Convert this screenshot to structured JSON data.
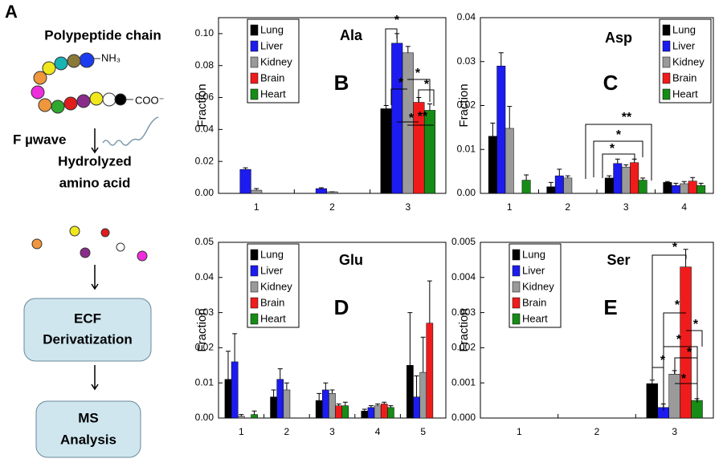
{
  "workflow": {
    "panel": "A",
    "title": "Polypeptide chain",
    "n_terminus": "NH₃",
    "c_terminus": "COO⁻",
    "step": "F µwave",
    "product": [
      "Hydrolyzed",
      "amino acid"
    ],
    "derivatization": [
      "ECF",
      "Derivatization"
    ],
    "analysis": [
      "MS",
      "Analysis"
    ]
  },
  "chart_data": [
    {
      "type": "bar",
      "title": "Ala",
      "panel": "B",
      "ylabel": "Fraction",
      "legend": "upper left",
      "categories": [
        "1",
        "2",
        "3"
      ],
      "ylim": [
        0,
        0.11
      ],
      "yticks": [
        {
          "value": 0,
          "label": "0.00"
        },
        {
          "value": 0.02,
          "label": "0.02"
        },
        {
          "value": 0.04,
          "label": "0.04"
        },
        {
          "value": 0.06,
          "label": "0.06"
        },
        {
          "value": 0.08,
          "label": "0.08"
        },
        {
          "value": 0.1,
          "label": "0.10"
        }
      ],
      "series": [
        {
          "name": "Lung",
          "color": "#000000",
          "values": [
            0,
            0,
            0.053
          ],
          "errors": [
            0,
            0,
            0.002
          ]
        },
        {
          "name": "Liver",
          "color": "#1c1cf0",
          "values": [
            0.015,
            0.003,
            0.094
          ],
          "errors": [
            0.001,
            0.0005,
            0.006
          ]
        },
        {
          "name": "Kidney",
          "color": "#9a9a9a",
          "values": [
            0.002,
            0.001,
            0.088
          ],
          "errors": [
            0.001,
            0,
            0.004
          ]
        },
        {
          "name": "Brain",
          "color": "#f01c1c",
          "values": [
            0,
            0,
            0.057
          ],
          "errors": [
            0,
            0,
            0.003
          ]
        },
        {
          "name": "Heart",
          "color": "#168c16",
          "values": [
            0,
            0,
            0.052
          ],
          "errors": [
            0,
            0,
            0.004
          ]
        }
      ],
      "annotations": [
        "*",
        "*",
        "*",
        "*",
        "*",
        "**"
      ]
    },
    {
      "type": "bar",
      "title": "Asp",
      "panel": "C",
      "ylabel": "Fraction",
      "legend": "upper right",
      "categories": [
        "1",
        "2",
        "3",
        "4"
      ],
      "ylim": [
        0,
        0.04
      ],
      "yticks": [
        {
          "value": 0,
          "label": "0.00"
        },
        {
          "value": 0.01,
          "label": "0.01"
        },
        {
          "value": 0.02,
          "label": "0.02"
        },
        {
          "value": 0.03,
          "label": "0.03"
        },
        {
          "value": 0.04,
          "label": "0.04"
        }
      ],
      "series": [
        {
          "name": "Lung",
          "color": "#000000",
          "values": [
            0.013,
            0.0015,
            0.0035,
            0.0025
          ],
          "errors": [
            0.003,
            0.001,
            0.0005,
            0.0002
          ]
        },
        {
          "name": "Liver",
          "color": "#1c1cf0",
          "values": [
            0.029,
            0.004,
            0.0068,
            0.0018
          ],
          "errors": [
            0.003,
            0.0015,
            0.001,
            0.0005
          ]
        },
        {
          "name": "Kidney",
          "color": "#9a9a9a",
          "values": [
            0.0148,
            0.0035,
            0.006,
            0.0022
          ],
          "errors": [
            0.005,
            0.0005,
            0.0005,
            0.0005
          ]
        },
        {
          "name": "Brain",
          "color": "#f01c1c",
          "values": [
            0,
            0,
            0.007,
            0.0028
          ],
          "errors": [
            0,
            0,
            0.0008,
            0.0008
          ]
        },
        {
          "name": "Heart",
          "color": "#168c16",
          "values": [
            0.003,
            0,
            0.003,
            0.0018
          ],
          "errors": [
            0.0012,
            0,
            0.0005,
            0.0005
          ]
        }
      ],
      "annotations": [
        "**",
        "*",
        "*"
      ]
    },
    {
      "type": "bar",
      "title": "Glu",
      "panel": "D",
      "ylabel": "Fraction",
      "legend": "upper left",
      "categories": [
        "1",
        "2",
        "3",
        "4",
        "5"
      ],
      "ylim": [
        0,
        0.05
      ],
      "yticks": [
        {
          "value": 0,
          "label": "0.00"
        },
        {
          "value": 0.01,
          "label": "0.01"
        },
        {
          "value": 0.02,
          "label": "0.02"
        },
        {
          "value": 0.03,
          "label": "0.03"
        },
        {
          "value": 0.04,
          "label": "0.04"
        },
        {
          "value": 0.05,
          "label": "0.05"
        }
      ],
      "series": [
        {
          "name": "Lung",
          "color": "#000000",
          "values": [
            0.011,
            0.006,
            0.005,
            0.002,
            0.015
          ],
          "errors": [
            0.008,
            0.002,
            0.002,
            0.0005,
            0.015
          ]
        },
        {
          "name": "Liver",
          "color": "#1c1cf0",
          "values": [
            0.016,
            0.011,
            0.008,
            0.003,
            0.006
          ],
          "errors": [
            0.008,
            0.003,
            0.002,
            0.0005,
            0.006
          ]
        },
        {
          "name": "Kidney",
          "color": "#9a9a9a",
          "values": [
            0.0005,
            0.008,
            0.007,
            0.0035,
            0.013
          ],
          "errors": [
            0.0005,
            0.002,
            0.001,
            0.0005,
            0.01
          ]
        },
        {
          "name": "Brain",
          "color": "#f01c1c",
          "values": [
            0,
            0,
            0.0035,
            0.004,
            0.027
          ],
          "errors": [
            0,
            0,
            0.0005,
            0.0005,
            0.012
          ]
        },
        {
          "name": "Heart",
          "color": "#168c16",
          "values": [
            0.001,
            0,
            0.0035,
            0.003,
            0
          ],
          "errors": [
            0.001,
            0,
            0.001,
            0.0005,
            0
          ]
        }
      ],
      "annotations": []
    },
    {
      "type": "bar",
      "title": "Ser",
      "panel": "E",
      "ylabel": "Fraction",
      "legend": "upper left",
      "categories": [
        "1",
        "2",
        "3"
      ],
      "ylim": [
        0,
        0.005
      ],
      "yticks": [
        {
          "value": 0,
          "label": "0.000"
        },
        {
          "value": 0.001,
          "label": "0.001"
        },
        {
          "value": 0.002,
          "label": "0.002"
        },
        {
          "value": 0.003,
          "label": "0.003"
        },
        {
          "value": 0.004,
          "label": "0.004"
        },
        {
          "value": 0.005,
          "label": "0.005"
        }
      ],
      "series": [
        {
          "name": "Lung",
          "color": "#000000",
          "values": [
            0,
            0,
            0.00098
          ],
          "errors": [
            0,
            0,
            0.0001
          ]
        },
        {
          "name": "Liver",
          "color": "#1c1cf0",
          "values": [
            0,
            0,
            0.0003
          ],
          "errors": [
            0,
            0,
            0.0001
          ]
        },
        {
          "name": "Kidney",
          "color": "#9a9a9a",
          "values": [
            0,
            0,
            0.00125
          ],
          "errors": [
            0,
            0,
            0.0001
          ]
        },
        {
          "name": "Brain",
          "color": "#f01c1c",
          "values": [
            0,
            0,
            0.0043
          ],
          "errors": [
            0,
            0,
            0.0005
          ]
        },
        {
          "name": "Heart",
          "color": "#168c16",
          "values": [
            0,
            0,
            0.0005
          ],
          "errors": [
            0,
            0,
            5e-05
          ]
        }
      ],
      "annotations": [
        "*",
        "*",
        "*",
        "*",
        "*",
        "*",
        "*"
      ]
    }
  ]
}
